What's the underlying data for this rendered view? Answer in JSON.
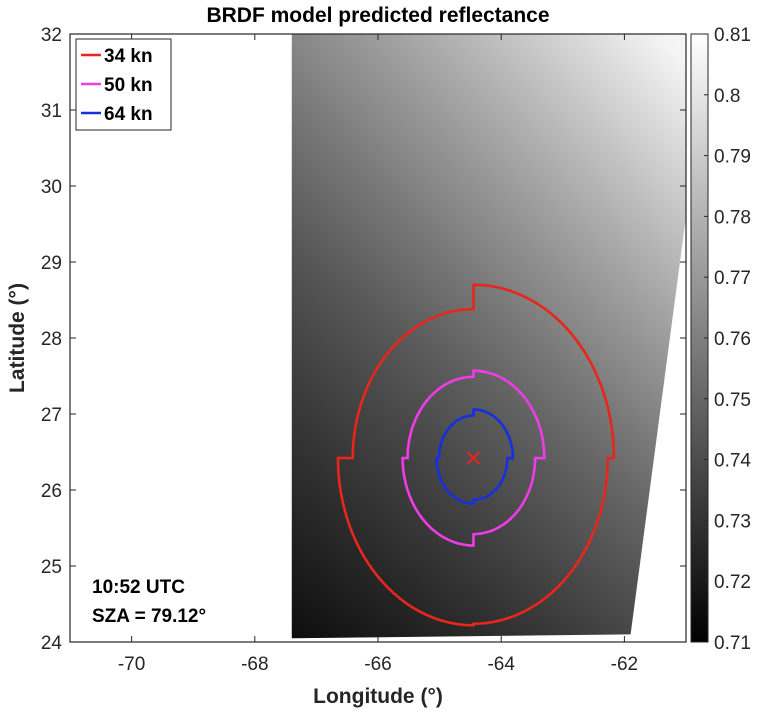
{
  "chart_data": {
    "type": "heatmap",
    "title": "BRDF model predicted reflectance",
    "xlabel": "Longitude (°)",
    "ylabel": "Latitude (°)",
    "xlim": [
      -71,
      -61
    ],
    "ylim": [
      24,
      32
    ],
    "xticks": [
      -70,
      -68,
      -66,
      -64,
      -62
    ],
    "xtick_labels": [
      "-70",
      "-68",
      "-66",
      "-64",
      "-62"
    ],
    "yticks": [
      24,
      25,
      26,
      27,
      28,
      29,
      30,
      31,
      32
    ],
    "ytick_labels": [
      "24",
      "25",
      "26",
      "27",
      "28",
      "29",
      "30",
      "31",
      "32"
    ],
    "grid": false,
    "colorbar": {
      "colormap": "gray",
      "clim": [
        0.71,
        0.81
      ],
      "ticks": [
        0.71,
        0.72,
        0.73,
        0.74,
        0.75,
        0.76,
        0.77,
        0.78,
        0.79,
        0.8,
        0.81
      ],
      "tick_labels": [
        "0.71",
        "0.72",
        "0.73",
        "0.74",
        "0.75",
        "0.76",
        "0.77",
        "0.78",
        "0.79",
        "0.8",
        "0.81"
      ]
    },
    "swath": {
      "corners": [
        [
          -67.4,
          32.0
        ],
        [
          -61.0,
          32.0
        ],
        [
          -61.0,
          29.6
        ],
        [
          -61.9,
          24.1
        ],
        [
          -67.4,
          24.05
        ]
      ],
      "value_at_corners": {
        "top_left": 0.75,
        "top_right": 0.81,
        "bottom_left": 0.71,
        "bottom_right": 0.78
      }
    },
    "center": {
      "lon": -64.45,
      "lat": 26.42,
      "marker": "x",
      "color": "#e8261b"
    },
    "series": [
      {
        "name": "34 kn",
        "color": "#e8261b",
        "quadrant_radii_deg": {
          "ne": 2.28,
          "se": 2.18,
          "sw": 2.2,
          "nw": 1.96
        }
      },
      {
        "name": "50 kn",
        "color": "#ef3ce6",
        "quadrant_radii_deg": {
          "ne": 1.15,
          "se": 1.0,
          "sw": 1.15,
          "nw": 1.07
        }
      },
      {
        "name": "64 kn",
        "color": "#1530e0",
        "quadrant_radii_deg": {
          "ne": 0.64,
          "se": 0.55,
          "sw": 0.6,
          "nw": 0.56
        }
      }
    ],
    "legend_position": "top-left",
    "annotations": [
      "10:52 UTC",
      "SZA = 79.12°"
    ]
  }
}
